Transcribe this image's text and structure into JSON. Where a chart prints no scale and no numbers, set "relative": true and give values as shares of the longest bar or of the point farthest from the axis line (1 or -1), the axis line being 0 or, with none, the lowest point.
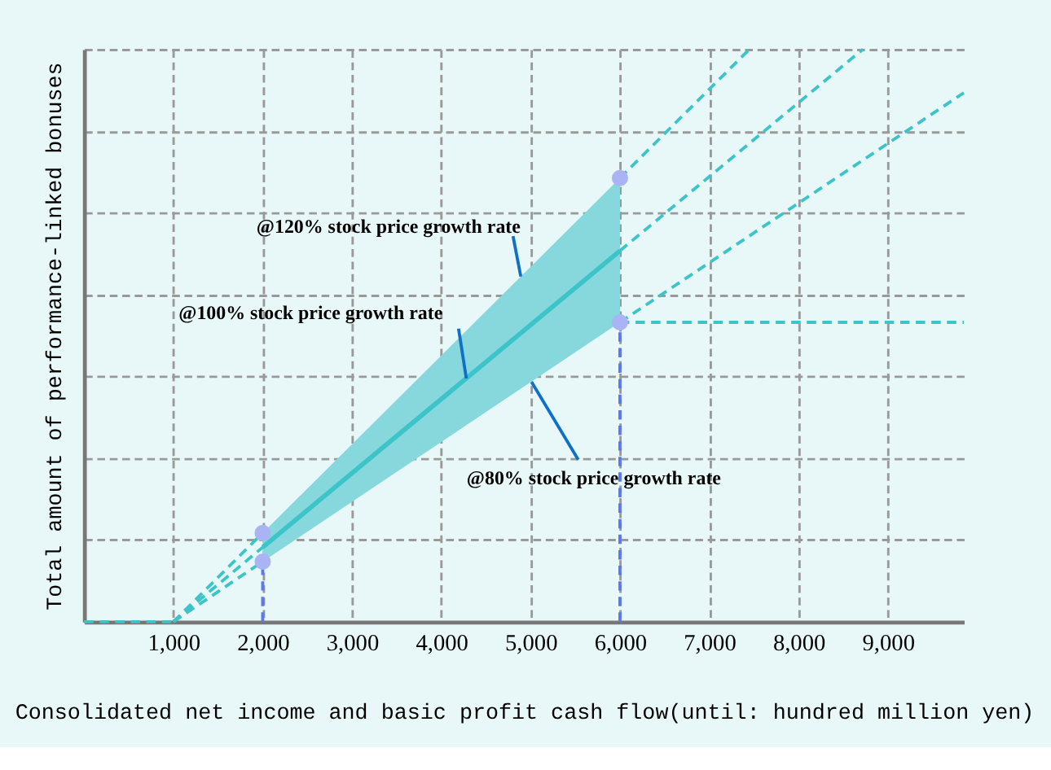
{
  "chart_data": {
    "type": "line",
    "relative": true,
    "xlabel": "Consolidated net income and basic profit cash flow(until: hundred million yen)",
    "ylabel": "Total amount of performance-linked bonuses",
    "xlim": [
      0,
      9850
    ],
    "xticks": [
      {
        "value": 1000,
        "label": "1,000"
      },
      {
        "value": 2000,
        "label": "2,000"
      },
      {
        "value": 3000,
        "label": "3,000"
      },
      {
        "value": 4000,
        "label": "4,000"
      },
      {
        "value": 5000,
        "label": "5,000"
      },
      {
        "value": 6000,
        "label": "6,000"
      },
      {
        "value": 7000,
        "label": "7,000"
      },
      {
        "value": 8000,
        "label": "8,000"
      },
      {
        "value": 9000,
        "label": "9,000"
      }
    ],
    "grid": true,
    "tick_labels": "x",
    "series": [
      {
        "color": "#3cc4c8",
        "x": [
          2000,
          6000
        ],
        "values": [
          0.13,
          0.648
        ],
        "lower": [
          0.105,
          0.523
        ],
        "upper": [
          0.155,
          0.775
        ],
        "line_style": "solid"
      },
      {
        "type": "line",
        "color": "#3cc4c8",
        "x": [
          0,
          1000
        ],
        "values": [
          0,
          0
        ],
        "line_style": "dashed"
      },
      {
        "type": "line",
        "color": "#3cc4c8",
        "x": [
          1000,
          2000
        ],
        "values": [
          0,
          0.155
        ],
        "line_style": "dashed"
      },
      {
        "type": "line",
        "color": "#3cc4c8",
        "x": [
          1000,
          2000
        ],
        "values": [
          0,
          0.13
        ],
        "line_style": "dashed"
      },
      {
        "type": "line",
        "color": "#3cc4c8",
        "x": [
          1000,
          2000
        ],
        "values": [
          0,
          0.105
        ],
        "line_style": "dashed"
      },
      {
        "type": "line",
        "color": "#3cc4c8",
        "x": [
          6000,
          7450
        ],
        "values": [
          0.775,
          1
        ],
        "line_style": "dashed"
      },
      {
        "type": "line",
        "color": "#3cc4c8",
        "x": [
          6000,
          8720
        ],
        "values": [
          0.648,
          1
        ],
        "line_style": "dashed"
      },
      {
        "type": "line",
        "color": "#3cc4c8",
        "x": [
          6000,
          9850
        ],
        "values": [
          0.523,
          0.924
        ],
        "line_style": "dashed"
      },
      {
        "type": "line",
        "color": "#3cc4c8",
        "x": [
          6000,
          9850
        ],
        "values": [
          0.523,
          0.523
        ],
        "line_style": "dashed"
      },
      {
        "type": "line",
        "color": "#5a78f0",
        "x": [
          2000,
          2000
        ],
        "values": [
          0,
          0.105
        ],
        "line_style": "dashed"
      },
      {
        "type": "line",
        "color": "#5a78f0",
        "x": [
          6000,
          6000
        ],
        "values": [
          0,
          0.523
        ],
        "line_style": "dashed"
      },
      {
        "type": "scatter",
        "color": "#aab4f4",
        "x": [
          2000,
          2000,
          6000,
          6000
        ],
        "values": [
          0.155,
          0.105,
          0.775,
          0.523
        ],
        "marker": "circle"
      }
    ],
    "annotations": [
      {
        "text": "@120% stock price growth rate",
        "x": 4890,
        "y": 0.603
      },
      {
        "text": "@100% stock price growth rate",
        "x": 4280,
        "y": 0.425
      },
      {
        "text": "@80% stock price growth rate",
        "x": 5010,
        "y": 0.419
      }
    ]
  }
}
